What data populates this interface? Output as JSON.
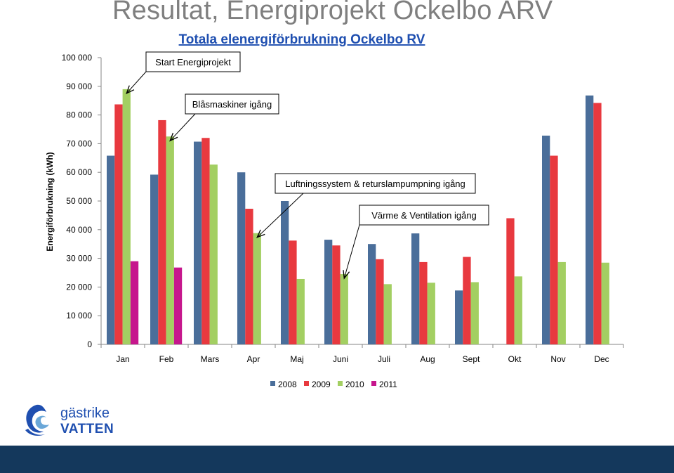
{
  "slide": {
    "title": "Resultat, Energiprojekt Ockelbo ARV",
    "logo": {
      "line1": "gästrike",
      "line2": "VATTEN",
      "icon": "gastrike-vatten-logo"
    }
  },
  "chart_data": {
    "type": "bar",
    "title": "Totala elenergiförbrukning Ockelbo RV",
    "ylabel": "Energiförbrukning (kWh)",
    "xlabel": "",
    "ylim": [
      0,
      100000
    ],
    "yticks": [
      0,
      10000,
      20000,
      30000,
      40000,
      50000,
      60000,
      70000,
      80000,
      90000,
      100000
    ],
    "ytick_labels": [
      "0",
      "10 000",
      "20 000",
      "30 000",
      "40 000",
      "50 000",
      "60 000",
      "70 000",
      "80 000",
      "90 000",
      "100 000"
    ],
    "grid": false,
    "legend_position": "bottom",
    "categories": [
      "Jan",
      "Feb",
      "Mars",
      "Apr",
      "Maj",
      "Juni",
      "Juli",
      "Aug",
      "Sept",
      "Okt",
      "Nov",
      "Dec"
    ],
    "series": [
      {
        "name": "2008",
        "color": "#4a6e9a",
        "values": [
          65800,
          59200,
          70700,
          60000,
          50000,
          36500,
          35000,
          38700,
          18800,
          null,
          72800,
          86800
        ]
      },
      {
        "name": "2009",
        "color": "#e8393f",
        "values": [
          83700,
          78200,
          72000,
          47300,
          36200,
          34500,
          29700,
          28700,
          30500,
          44000,
          65800,
          84200
        ]
      },
      {
        "name": "2010",
        "color": "#a3cf62",
        "values": [
          89000,
          72500,
          62700,
          38800,
          22800,
          24500,
          21000,
          21500,
          21700,
          23700,
          28700,
          28500
        ]
      },
      {
        "name": "2011",
        "color": "#c6168d",
        "values": [
          29000,
          26800,
          null,
          null,
          null,
          null,
          null,
          null,
          null,
          null,
          null,
          null
        ]
      }
    ],
    "annotations": [
      {
        "text": "Start Energiprojekt",
        "category": "Jan",
        "series": "2010",
        "value": 89000
      },
      {
        "text": "Blåsmaskiner igång",
        "category": "Feb",
        "series": "2010",
        "value": 72500
      },
      {
        "text": "Luftningssystem & returslampumpning igång",
        "category": "Apr",
        "series": "2010",
        "value": 38800
      },
      {
        "text": "Värme & Ventilation igång",
        "category": "Juni",
        "series": "2010",
        "value": 24500
      }
    ]
  }
}
